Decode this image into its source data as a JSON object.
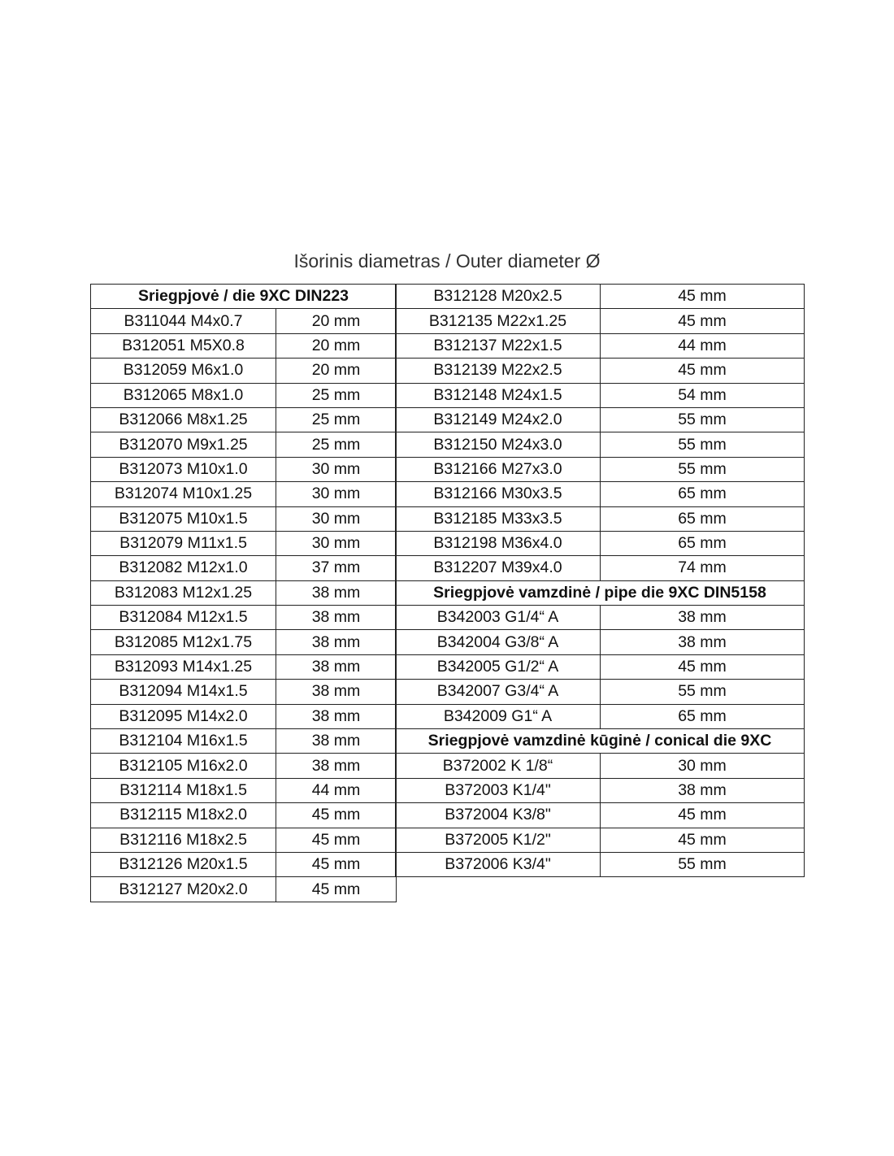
{
  "title": "Išorinis diametras / Outer diameter Ø",
  "left_table": [
    {
      "header": "Sriegpjovė / die 9XC DIN223"
    },
    {
      "code": "B311044 M4x0.7",
      "diameter": "20 mm"
    },
    {
      "code": "B312051 M5X0.8",
      "diameter": "20 mm"
    },
    {
      "code": "B312059 M6x1.0",
      "diameter": "20 mm"
    },
    {
      "code": "B312065 M8x1.0",
      "diameter": "25 mm"
    },
    {
      "code": "B312066 M8x1.25",
      "diameter": "25 mm"
    },
    {
      "code": "B312070 M9x1.25",
      "diameter": "25 mm"
    },
    {
      "code": "B312073 M10x1.0",
      "diameter": "30 mm"
    },
    {
      "code": "B312074 M10x1.25",
      "diameter": "30 mm"
    },
    {
      "code": "B312075 M10x1.5",
      "diameter": "30 mm"
    },
    {
      "code": "B312079 M11x1.5",
      "diameter": "30 mm"
    },
    {
      "code": "B312082 M12x1.0",
      "diameter": "37 mm"
    },
    {
      "code": "B312083 M12x1.25",
      "diameter": "38 mm"
    },
    {
      "code": "B312084 M12x1.5",
      "diameter": "38 mm"
    },
    {
      "code": "B312085 M12x1.75",
      "diameter": "38 mm"
    },
    {
      "code": "B312093 M14x1.25",
      "diameter": "38 mm"
    },
    {
      "code": "B312094 M14x1.5",
      "diameter": "38 mm"
    },
    {
      "code": "B312095 M14x2.0",
      "diameter": "38 mm"
    },
    {
      "code": "B312104 M16x1.5",
      "diameter": "38 mm"
    },
    {
      "code": "B312105 M16x2.0",
      "diameter": "38 mm"
    },
    {
      "code": "B312114 M18x1.5",
      "diameter": "44 mm"
    },
    {
      "code": "B312115 M18x2.0",
      "diameter": "45 mm"
    },
    {
      "code": "B312116 M18x2.5",
      "diameter": "45 mm"
    },
    {
      "code": "B312126 M20x1.5",
      "diameter": "45 mm"
    },
    {
      "code": "B312127 M20x2.0",
      "diameter": "45 mm"
    }
  ],
  "right_table": [
    {
      "code": "B312128 M20x2.5",
      "diameter": "45 mm"
    },
    {
      "code": "B312135 M22x1.25",
      "diameter": "45 mm"
    },
    {
      "code": "B312137 M22x1.5",
      "diameter": "44 mm"
    },
    {
      "code": "B312139 M22x2.5",
      "diameter": "45 mm"
    },
    {
      "code": "B312148 M24x1.5",
      "diameter": "54 mm"
    },
    {
      "code": "B312149 M24x2.0",
      "diameter": "55 mm"
    },
    {
      "code": "B312150 M24x3.0",
      "diameter": "55 mm"
    },
    {
      "code": "B312166 M27x3.0",
      "diameter": "55 mm"
    },
    {
      "code": "B312166 M30x3.5",
      "diameter": "65 mm"
    },
    {
      "code": "B312185 M33x3.5",
      "diameter": "65 mm"
    },
    {
      "code": "B312198 M36x4.0",
      "diameter": "65 mm"
    },
    {
      "code": "B312207 M39x4.0",
      "diameter": "74 mm"
    },
    {
      "header": "Sriegpjovė vamzdinė / pipe die 9XC DIN5158"
    },
    {
      "code": "B342003 G1/4“ A",
      "diameter": "38 mm"
    },
    {
      "code": "B342004 G3/8“ A",
      "diameter": "38 mm"
    },
    {
      "code": "B342005 G1/2“ A",
      "diameter": "45 mm"
    },
    {
      "code": "B342007 G3/4“ A",
      "diameter": "55 mm"
    },
    {
      "code": "B342009 G1“ A",
      "diameter": "65 mm"
    },
    {
      "header": "Sriegpjovė vamzdinė kūginė / conical die 9XC"
    },
    {
      "code": "B372002 K 1/8“",
      "diameter": "30 mm"
    },
    {
      "code": "B372003 K1/4\"",
      "diameter": "38 mm"
    },
    {
      "code": "B372004 K3/8\"",
      "diameter": "45 mm"
    },
    {
      "code": "B372005 K1/2\"",
      "diameter": "45 mm"
    },
    {
      "code": "B372006 K3/4\"",
      "diameter": "55 mm"
    }
  ]
}
